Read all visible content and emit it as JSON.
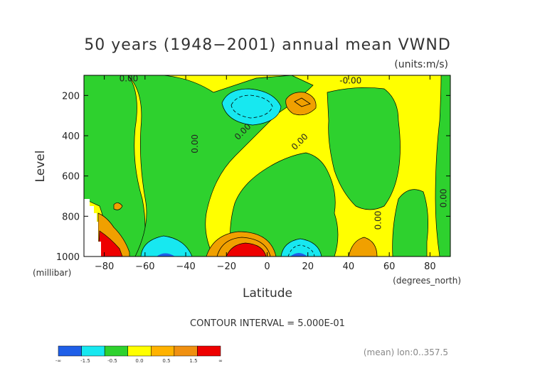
{
  "chart_data": {
    "type": "contour",
    "title": "50 years (1948−2001) annual mean VWND",
    "units_label": "(units:m/s)",
    "xlabel": "Latitude",
    "x_units": "(degrees_north)",
    "ylabel": "Level",
    "y_units": "(millibar)",
    "xlim": [
      -90,
      90
    ],
    "ylim": [
      1000,
      100
    ],
    "x_ticks": [
      -80,
      -60,
      -40,
      -20,
      0,
      20,
      40,
      60,
      80
    ],
    "y_ticks": [
      200,
      400,
      600,
      800,
      1000
    ],
    "contour_interval_text": "CONTOUR INTERVAL = 5.000E-01",
    "mean_note": "(mean) lon:0..357.5",
    "contour_labels": [
      {
        "text": "0.00",
        "lat": -68,
        "lev": 130,
        "rot": 0
      },
      {
        "text": "-0.00",
        "lat": 41,
        "lev": 140,
        "rot": 0
      },
      {
        "text": "0.00",
        "lat": -34,
        "lev": 440,
        "rot": -90
      },
      {
        "text": "0.00",
        "lat": -11,
        "lev": 390,
        "rot": -45
      },
      {
        "text": "0.00",
        "lat": 17,
        "lev": 440,
        "rot": -45
      },
      {
        "text": "0.00",
        "lat": 56,
        "lev": 820,
        "rot": -90
      },
      {
        "text": "0.00",
        "lat": 88,
        "lev": 710,
        "rot": -90
      }
    ],
    "colorbar": {
      "levels": [
        "-∞",
        "-1.5",
        "-0.5",
        "0.0",
        "0.5",
        "1.5",
        "∞"
      ],
      "colors": [
        "#1f5fe8",
        "#17e8f0",
        "#2ed12e",
        "#ffff00",
        "#ffb200",
        "#f09010",
        "#ee0000"
      ]
    },
    "colors": {
      "strong_neg": "#1f5fe8",
      "neg": "#17e8f0",
      "near_zero_neg": "#2ed12e",
      "near_zero_pos": "#ffff00",
      "pos": "#f0a000",
      "strong_pos": "#ee0000"
    }
  }
}
